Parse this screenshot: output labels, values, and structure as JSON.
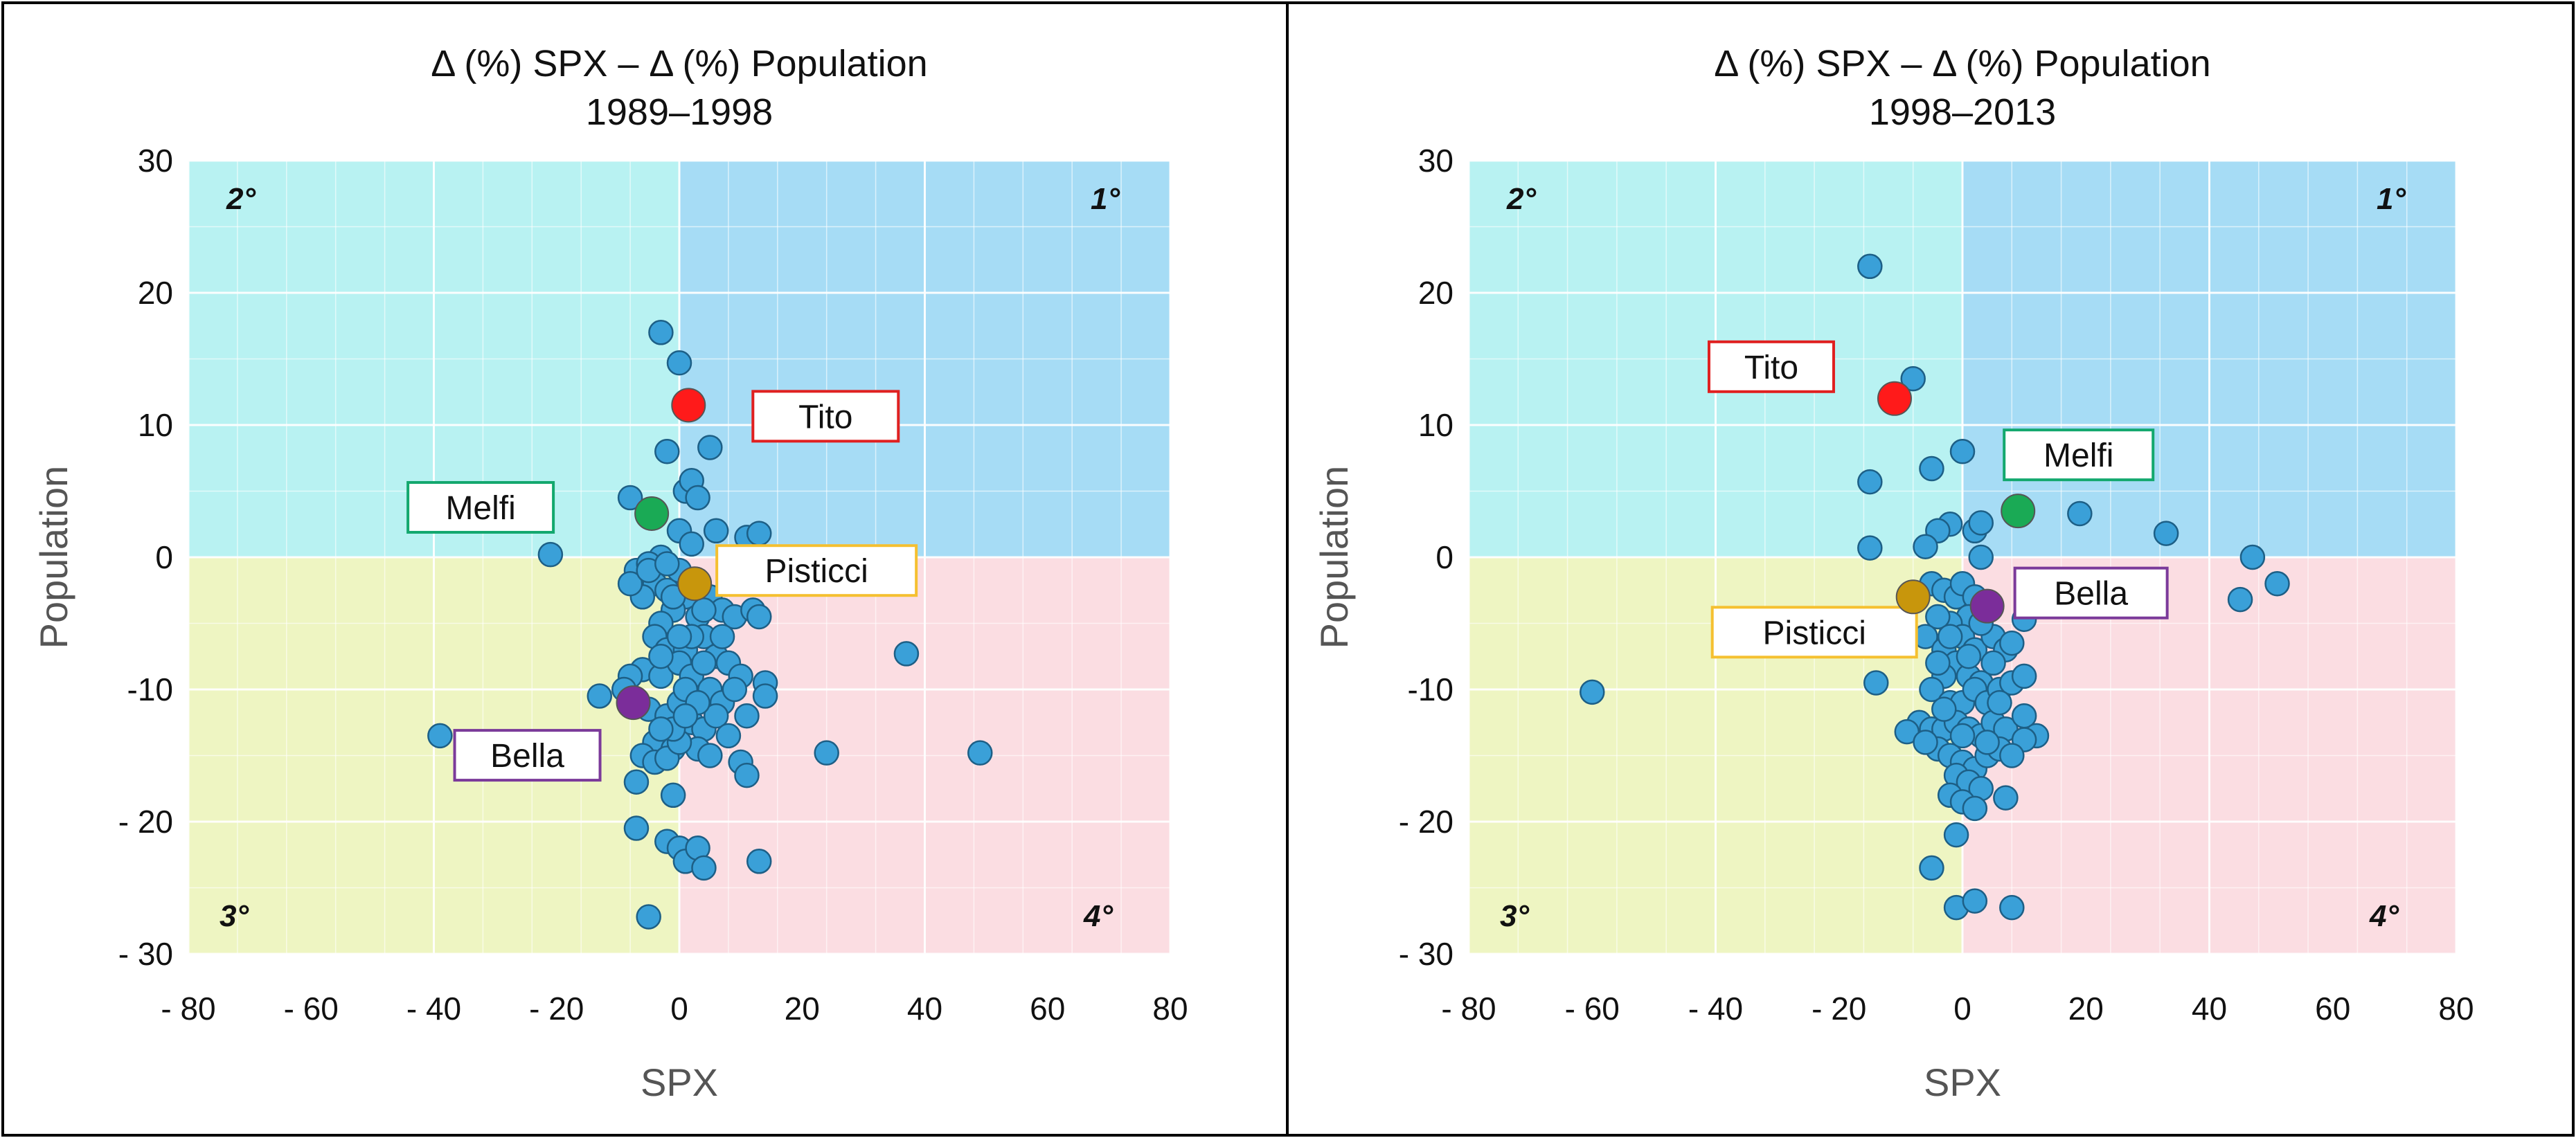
{
  "chart_data": [
    {
      "type": "scatter",
      "title": "Δ (%) SPX – Δ (%) Population",
      "subtitle": "1989–1998",
      "xlabel": "SPX",
      "ylabel": "Population",
      "xlim": [
        -80,
        80
      ],
      "ylim": [
        -30,
        30
      ],
      "xticks": [
        -80,
        -60,
        -40,
        -20,
        0,
        20,
        40,
        60,
        80
      ],
      "yticks": [
        -30,
        -20,
        -10,
        0,
        10,
        20,
        30
      ],
      "xtick_labels": [
        "- 80",
        "- 60",
        "- 40",
        "- 20",
        "0",
        "20",
        "40",
        "60",
        "80"
      ],
      "ytick_labels": [
        "- 30",
        "- 20",
        "-10",
        "0",
        "10",
        "20",
        "30"
      ],
      "grid": true,
      "quadrant_labels": {
        "q1": "1°",
        "q2": "2°",
        "q3": "3°",
        "q4": "4°"
      },
      "colors": {
        "q1": "#a6dcf5",
        "q2": "#b8f2f2",
        "q3": "#eef5c2",
        "q4": "#fbdde2",
        "point": "#3aa0d8",
        "point_edge": "#1d5f86"
      },
      "highlights": [
        {
          "name": "Tito",
          "x": 1.5,
          "y": 11.5,
          "color": "#ff1a1a",
          "box_color": "#e02020"
        },
        {
          "name": "Melfi",
          "x": -4.5,
          "y": 3.3,
          "color": "#1aaa55",
          "box_color": "#13a86e"
        },
        {
          "name": "Pisticci",
          "x": 2.5,
          "y": -2,
          "color": "#c8960c",
          "box_color": "#f5c030"
        },
        {
          "name": "Bella",
          "x": -7.5,
          "y": -11,
          "color": "#7b2d9a",
          "box_color": "#7b3a9a"
        }
      ],
      "points": [
        [
          -3,
          17
        ],
        [
          0,
          14.7
        ],
        [
          -2,
          8
        ],
        [
          5,
          8.3
        ],
        [
          1,
          5
        ],
        [
          2,
          5.8
        ],
        [
          3,
          4.5
        ],
        [
          -8,
          4.5
        ],
        [
          -21,
          0.2
        ],
        [
          -3,
          0
        ],
        [
          0,
          2
        ],
        [
          2,
          1
        ],
        [
          6,
          2
        ],
        [
          11,
          1.5
        ],
        [
          13,
          1.8
        ],
        [
          -7,
          -1
        ],
        [
          -5,
          -0.5
        ],
        [
          -4,
          -2
        ],
        [
          -2,
          -2.5
        ],
        [
          0,
          -1
        ],
        [
          1,
          -3
        ],
        [
          -1,
          -4
        ],
        [
          3,
          -4.5
        ],
        [
          -6,
          -3
        ],
        [
          -8,
          -2
        ],
        [
          -3,
          -5
        ],
        [
          5,
          -3
        ],
        [
          7,
          -4
        ],
        [
          9,
          -4.5
        ],
        [
          12,
          -4
        ],
        [
          13,
          -4.5
        ],
        [
          -4,
          -6
        ],
        [
          -2,
          -7
        ],
        [
          1,
          -7
        ],
        [
          4,
          -6
        ],
        [
          6,
          -7.5
        ],
        [
          8,
          -8
        ],
        [
          10,
          -9
        ],
        [
          14,
          -9.5
        ],
        [
          -6,
          -8.5
        ],
        [
          -8,
          -9
        ],
        [
          -3,
          -9
        ],
        [
          0,
          -8
        ],
        [
          2,
          -9
        ],
        [
          5,
          -10
        ],
        [
          7,
          -11
        ],
        [
          9,
          -10
        ],
        [
          11,
          -12
        ],
        [
          14,
          -10.5
        ],
        [
          -13,
          -10.5
        ],
        [
          -9,
          -10
        ],
        [
          -5,
          -11.5
        ],
        [
          -2,
          -12
        ],
        [
          0,
          -11
        ],
        [
          2,
          -12.5
        ],
        [
          4,
          -13
        ],
        [
          6,
          -12
        ],
        [
          8,
          -13.5
        ],
        [
          -4,
          -14
        ],
        [
          -1,
          -14.5
        ],
        [
          3,
          -14.5
        ],
        [
          5,
          -15
        ],
        [
          10,
          -15.5
        ],
        [
          11,
          -16.5
        ],
        [
          -6,
          -15
        ],
        [
          -4,
          -15.5
        ],
        [
          -2,
          -15.2
        ],
        [
          0,
          -14
        ],
        [
          -7,
          -17
        ],
        [
          -1,
          -18
        ],
        [
          -7,
          -20.5
        ],
        [
          -2,
          -21.5
        ],
        [
          0,
          -22
        ],
        [
          1,
          -23
        ],
        [
          3,
          -22
        ],
        [
          4,
          -23.5
        ],
        [
          13,
          -23
        ],
        [
          24,
          -14.8
        ],
        [
          37,
          -7.3
        ],
        [
          49,
          -14.8
        ],
        [
          -39,
          -13.5
        ],
        [
          -5,
          -27.2
        ],
        [
          -1,
          -13
        ],
        [
          -3,
          -13
        ],
        [
          1,
          -10
        ],
        [
          3,
          -11
        ],
        [
          -1,
          -3
        ],
        [
          2,
          -6
        ],
        [
          4,
          -8
        ],
        [
          -5,
          -1
        ],
        [
          -2,
          -0.5
        ],
        [
          0,
          -6
        ],
        [
          2,
          -2
        ],
        [
          4,
          -4
        ],
        [
          7,
          -6
        ],
        [
          -3,
          -7.5
        ],
        [
          1,
          -12
        ]
      ]
    },
    {
      "type": "scatter",
      "title": "Δ (%) SPX – Δ (%) Population",
      "subtitle": "1998–2013",
      "xlabel": "SPX",
      "ylabel": "Population",
      "xlim": [
        -80,
        80
      ],
      "ylim": [
        -30,
        30
      ],
      "xticks": [
        -80,
        -60,
        -40,
        -20,
        0,
        20,
        40,
        60,
        80
      ],
      "yticks": [
        -30,
        -20,
        -10,
        0,
        10,
        20,
        30
      ],
      "xtick_labels": [
        "- 80",
        "- 60",
        "- 40",
        "- 20",
        "0",
        "20",
        "40",
        "60",
        "80"
      ],
      "ytick_labels": [
        "- 30",
        "- 20",
        "-10",
        "0",
        "10",
        "20",
        "30"
      ],
      "grid": true,
      "quadrant_labels": {
        "q1": "1°",
        "q2": "2°",
        "q3": "3°",
        "q4": "4°"
      },
      "colors": {
        "q1": "#a6dcf5",
        "q2": "#b8f2f2",
        "q3": "#eef5c2",
        "q4": "#fbdde2",
        "point": "#3aa0d8",
        "point_edge": "#1d5f86"
      },
      "highlights": [
        {
          "name": "Tito",
          "x": -11,
          "y": 12,
          "color": "#ff1a1a",
          "box_color": "#e02020"
        },
        {
          "name": "Melfi",
          "x": 9,
          "y": 3.5,
          "color": "#1aaa55",
          "box_color": "#13a86e"
        },
        {
          "name": "Pisticci",
          "x": -8,
          "y": -3,
          "color": "#c8960c",
          "box_color": "#f5c030"
        },
        {
          "name": "Bella",
          "x": 4,
          "y": -3.7,
          "color": "#7b2d9a",
          "box_color": "#7b3a9a"
        }
      ],
      "points": [
        [
          -15,
          22
        ],
        [
          -8,
          13.5
        ],
        [
          0,
          8
        ],
        [
          -15,
          5.7
        ],
        [
          -5,
          6.7
        ],
        [
          2,
          2
        ],
        [
          3,
          2.6
        ],
        [
          -2,
          2.5
        ],
        [
          -4,
          2
        ],
        [
          -6,
          0.8
        ],
        [
          -15,
          0.7
        ],
        [
          3,
          0
        ],
        [
          19,
          3.3
        ],
        [
          33,
          1.8
        ],
        [
          47,
          0
        ],
        [
          51,
          -2
        ],
        [
          45,
          -3.2
        ],
        [
          -5,
          -2
        ],
        [
          -3,
          -2.5
        ],
        [
          -1,
          -3
        ],
        [
          0,
          -2
        ],
        [
          2,
          -3
        ],
        [
          1,
          -4.5
        ],
        [
          -2,
          -5
        ],
        [
          -4,
          -4.5
        ],
        [
          -6,
          -6
        ],
        [
          -3,
          -7
        ],
        [
          0,
          -6
        ],
        [
          2,
          -7
        ],
        [
          5,
          -6
        ],
        [
          7,
          -7
        ],
        [
          8,
          -6.5
        ],
        [
          10,
          -4.7
        ],
        [
          -1,
          -8
        ],
        [
          1,
          -9
        ],
        [
          3,
          -9.5
        ],
        [
          -3,
          -9
        ],
        [
          -5,
          -10
        ],
        [
          -2,
          -11
        ],
        [
          0,
          -11
        ],
        [
          2,
          -10
        ],
        [
          4,
          -11
        ],
        [
          6,
          -10
        ],
        [
          8,
          -9.5
        ],
        [
          10,
          -9
        ],
        [
          -14,
          -9.5
        ],
        [
          -60,
          -10.2
        ],
        [
          -7,
          -12.5
        ],
        [
          -5,
          -13
        ],
        [
          -3,
          -13
        ],
        [
          -1,
          -12.5
        ],
        [
          1,
          -13
        ],
        [
          3,
          -13.5
        ],
        [
          5,
          -12.5
        ],
        [
          7,
          -13
        ],
        [
          10,
          -12
        ],
        [
          12,
          -13.5
        ],
        [
          10,
          -13.8
        ],
        [
          -4,
          -14.5
        ],
        [
          -2,
          -15
        ],
        [
          0,
          -15.5
        ],
        [
          2,
          -16
        ],
        [
          4,
          -15
        ],
        [
          6,
          -14.5
        ],
        [
          8,
          -15
        ],
        [
          -1,
          -16.5
        ],
        [
          1,
          -17
        ],
        [
          3,
          -17.5
        ],
        [
          -2,
          -18
        ],
        [
          0,
          -18.5
        ],
        [
          2,
          -19
        ],
        [
          7,
          -18.2
        ],
        [
          -1,
          -21
        ],
        [
          -5,
          -23.5
        ],
        [
          -1,
          -26.5
        ],
        [
          2,
          -26
        ],
        [
          8,
          -26.5
        ],
        [
          -9,
          -13.2
        ],
        [
          -6,
          -14
        ],
        [
          -3,
          -11.5
        ],
        [
          1,
          -7.5
        ],
        [
          3,
          -5
        ],
        [
          -2,
          -6
        ],
        [
          5,
          -8
        ],
        [
          4,
          -14
        ],
        [
          -4,
          -8
        ],
        [
          0,
          -13.5
        ],
        [
          6,
          -11
        ]
      ]
    }
  ]
}
